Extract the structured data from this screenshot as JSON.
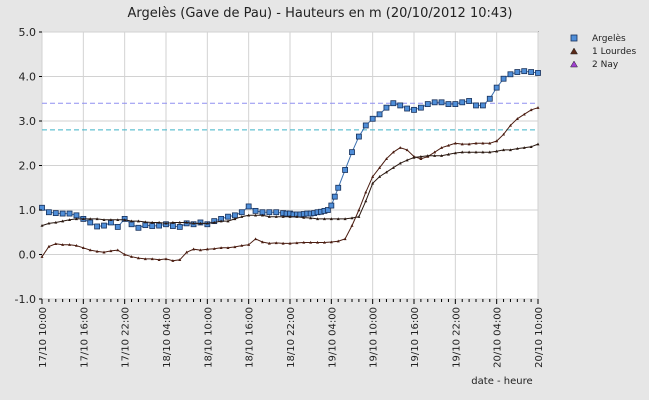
{
  "chart_data": {
    "type": "line",
    "title": "Argelès (Gave de Pau) - Hauteurs en m (20/10/2012 10:43)",
    "xlabel": "date - heure",
    "ylabel": "",
    "ylim": [
      -1.0,
      5.0
    ],
    "y_ticks": [
      "5.0",
      "4.0",
      "3.0",
      "2.0",
      "1.0",
      "0.0",
      "-1.0"
    ],
    "x_ticks": [
      "17/10 10:00",
      "17/10 16:00",
      "17/10 22:00",
      "18/10 04:00",
      "18/10 10:00",
      "18/10 16:00",
      "18/10 22:00",
      "19/10 04:00",
      "19/10 10:00",
      "19/10 16:00",
      "19/10 22:00",
      "20/10 04:00",
      "20/10 10:00"
    ],
    "grid": true,
    "legend_position": "top-right",
    "threshold_lines": [
      {
        "y": 3.4,
        "color": "#8f8ff0"
      },
      {
        "y": 2.8,
        "color": "#3fb4c8"
      }
    ],
    "series": [
      {
        "name": "Argelès",
        "color": "#3a6fb0",
        "marker": "square",
        "x": [
          0,
          1,
          2,
          3,
          4,
          5,
          6,
          7,
          8,
          9,
          10,
          11,
          12,
          13,
          14,
          15,
          16,
          17,
          18,
          19,
          20,
          21,
          22,
          23,
          24,
          25,
          26,
          27,
          28,
          29,
          30,
          31,
          32,
          33,
          34,
          35,
          35.5,
          36,
          36.5,
          37,
          37.5,
          38,
          38.5,
          39,
          39.5,
          40,
          40.5,
          41,
          41.5,
          42,
          42.5,
          43,
          44,
          45,
          46,
          47,
          48,
          49,
          50,
          51,
          52,
          53,
          54,
          55,
          56,
          57,
          58,
          59,
          60,
          61,
          62,
          63,
          64,
          65,
          66,
          67,
          68,
          69,
          70,
          71,
          72
        ],
        "values": [
          1.05,
          0.95,
          0.93,
          0.92,
          0.92,
          0.88,
          0.8,
          0.72,
          0.63,
          0.65,
          0.72,
          0.62,
          0.8,
          0.68,
          0.6,
          0.66,
          0.64,
          0.65,
          0.68,
          0.64,
          0.62,
          0.7,
          0.68,
          0.72,
          0.68,
          0.75,
          0.8,
          0.85,
          0.88,
          0.95,
          1.08,
          0.98,
          0.95,
          0.95,
          0.95,
          0.93,
          0.92,
          0.92,
          0.9,
          0.9,
          0.9,
          0.91,
          0.92,
          0.92,
          0.93,
          0.95,
          0.96,
          0.98,
          1.0,
          1.1,
          1.3,
          1.5,
          1.9,
          2.3,
          2.65,
          2.9,
          3.05,
          3.15,
          3.3,
          3.4,
          3.35,
          3.28,
          3.25,
          3.3,
          3.38,
          3.42,
          3.42,
          3.38,
          3.38,
          3.42,
          3.45,
          3.35,
          3.35,
          3.5,
          3.75,
          3.95,
          4.05,
          4.1,
          4.12,
          4.1,
          4.08
        ]
      },
      {
        "name": "1 Lourdes",
        "color": "#4a1c10",
        "marker": "triangle",
        "x": [
          0,
          1,
          2,
          3,
          4,
          5,
          6,
          7,
          8,
          9,
          10,
          11,
          12,
          13,
          14,
          15,
          16,
          17,
          18,
          19,
          20,
          21,
          22,
          23,
          24,
          25,
          26,
          27,
          28,
          29,
          30,
          31,
          32,
          33,
          34,
          35,
          36,
          37,
          38,
          39,
          40,
          41,
          42,
          43,
          44,
          45,
          46,
          47,
          48,
          49,
          50,
          51,
          52,
          53,
          54,
          55,
          56,
          57,
          58,
          59,
          60,
          61,
          62,
          63,
          64,
          65,
          66,
          67,
          68,
          69,
          70,
          71,
          72
        ],
        "values": [
          -0.05,
          0.18,
          0.24,
          0.22,
          0.22,
          0.2,
          0.15,
          0.1,
          0.07,
          0.05,
          0.08,
          0.1,
          0.0,
          -0.05,
          -0.08,
          -0.1,
          -0.1,
          -0.12,
          -0.1,
          -0.14,
          -0.12,
          0.05,
          0.12,
          0.1,
          0.12,
          0.13,
          0.15,
          0.15,
          0.17,
          0.2,
          0.22,
          0.35,
          0.28,
          0.25,
          0.26,
          0.25,
          0.25,
          0.26,
          0.27,
          0.27,
          0.27,
          0.27,
          0.28,
          0.3,
          0.35,
          0.65,
          1.0,
          1.4,
          1.75,
          1.95,
          2.15,
          2.3,
          2.4,
          2.35,
          2.2,
          2.15,
          2.2,
          2.3,
          2.4,
          2.45,
          2.5,
          2.48,
          2.48,
          2.5,
          2.5,
          2.5,
          2.55,
          2.7,
          2.9,
          3.05,
          3.15,
          3.25,
          3.3
        ]
      },
      {
        "name": "2 Nay",
        "color": "#2a1810",
        "marker": "triangle",
        "x": [
          0,
          1,
          2,
          3,
          4,
          5,
          6,
          7,
          8,
          9,
          10,
          11,
          12,
          13,
          14,
          15,
          16,
          17,
          18,
          19,
          20,
          21,
          22,
          23,
          24,
          25,
          26,
          27,
          28,
          29,
          30,
          31,
          32,
          33,
          34,
          35,
          36,
          37,
          38,
          39,
          40,
          41,
          42,
          43,
          44,
          45,
          46,
          47,
          48,
          49,
          50,
          51,
          52,
          53,
          54,
          55,
          56,
          57,
          58,
          59,
          60,
          61,
          62,
          63,
          64,
          65,
          66,
          67,
          68,
          69,
          70,
          71,
          72
        ],
        "values": [
          0.65,
          0.7,
          0.72,
          0.75,
          0.78,
          0.8,
          0.8,
          0.8,
          0.8,
          0.78,
          0.78,
          0.78,
          0.78,
          0.75,
          0.75,
          0.73,
          0.72,
          0.72,
          0.7,
          0.72,
          0.72,
          0.72,
          0.7,
          0.7,
          0.7,
          0.72,
          0.75,
          0.75,
          0.8,
          0.85,
          0.88,
          0.88,
          0.88,
          0.85,
          0.85,
          0.85,
          0.85,
          0.85,
          0.83,
          0.82,
          0.8,
          0.8,
          0.8,
          0.8,
          0.8,
          0.82,
          0.85,
          1.2,
          1.6,
          1.75,
          1.85,
          1.95,
          2.05,
          2.12,
          2.18,
          2.2,
          2.22,
          2.22,
          2.22,
          2.25,
          2.28,
          2.3,
          2.3,
          2.3,
          2.3,
          2.3,
          2.32,
          2.35,
          2.35,
          2.38,
          2.4,
          2.42,
          2.48
        ]
      }
    ]
  }
}
